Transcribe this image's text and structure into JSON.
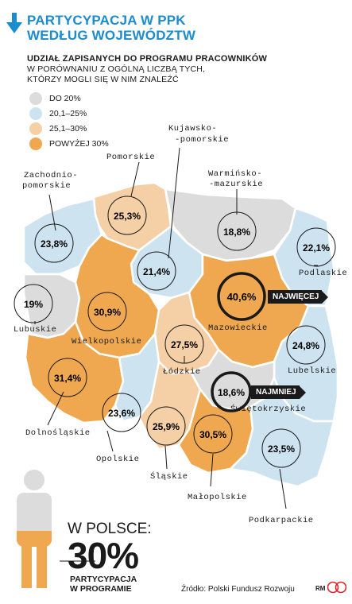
{
  "title": {
    "line1": "PARTYCYPACJA W PPK",
    "line2": "WEDŁUG WOJEWÓDZTW"
  },
  "subtitle": {
    "line1": "UDZIAŁ ZAPISANYCH DO PROGRAMU PRACOWNIKÓW",
    "line2": "W PORÓWNANIU Z OGÓLNĄ LICZBĄ TYCH,",
    "line3": "KTÓRZY MOGLI SIĘ W NIM ZNALEŹĆ"
  },
  "legend": [
    {
      "label": "DO 20%",
      "color": "#dcdcdc"
    },
    {
      "label": "20,1–25%",
      "color": "#cde3f0"
    },
    {
      "label": "25,1–30%",
      "color": "#f5cfa6"
    },
    {
      "label": "POWYŻEJ 30%",
      "color": "#f0a850"
    }
  ],
  "regions": {
    "zachodniopomorskie": {
      "name_l1": "Zachodnio-",
      "name_l2": "pomorskie",
      "value": "23,8%",
      "color": "#cde3f0"
    },
    "pomorskie": {
      "name": "Pomorskie",
      "value": "25,3%",
      "color": "#f5cfa6"
    },
    "kujawsko": {
      "name_l1": "Kujawsko-",
      "name_l2": "-pomorskie",
      "value": "21,4%",
      "color": "#cde3f0"
    },
    "warminsko": {
      "name_l1": "Warmińsko-",
      "name_l2": "-mazurskie",
      "value": "18,8%",
      "color": "#dcdcdc"
    },
    "podlaskie": {
      "name": "Podlaskie",
      "value": "22,1%",
      "color": "#cde3f0"
    },
    "lubuskie": {
      "name": "Lubuskie",
      "value": "19%",
      "color": "#dcdcdc"
    },
    "wielkopolskie": {
      "name": "Wielkopolskie",
      "value": "30,9%",
      "color": "#f0a850"
    },
    "mazowieckie": {
      "name": "Mazowieckie",
      "value": "40,6%",
      "color": "#f0a850"
    },
    "lodzkie": {
      "name": "Łódzkie",
      "value": "27,5%",
      "color": "#f5cfa6"
    },
    "lubelskie": {
      "name": "Lubelskie",
      "value": "24,8%",
      "color": "#cde3f0"
    },
    "dolnoslaskie": {
      "name": "Dolnośląskie",
      "value": "31,4%",
      "color": "#f0a850"
    },
    "opolskie": {
      "name": "Opolskie",
      "value": "23,6%",
      "color": "#cde3f0"
    },
    "slaskie": {
      "name": "Śląskie",
      "value": "25,9%",
      "color": "#f5cfa6"
    },
    "swietokrzyskie": {
      "name": "Świętokrzyskie",
      "value": "18,6%",
      "color": "#dcdcdc"
    },
    "malopolskie": {
      "name": "Małopolskie",
      "value": "30,5%",
      "color": "#f0a850"
    },
    "podkarpackie": {
      "name": "Podkarpackie",
      "value": "23,5%",
      "color": "#cde3f0"
    }
  },
  "badges": {
    "highest": "NAJWIĘCEJ",
    "lowest": "NAJMNIEJ"
  },
  "summary": {
    "line1": "W POLSCE:",
    "value": "30%",
    "caption_l1": "PARTYCYPACJA",
    "caption_l2": "W PROGRAMIE",
    "fill_fraction": 0.3,
    "accent": "#f0a850"
  },
  "source": "Źródło: Polski Fundusz Rozwoju",
  "credit": "RM",
  "accent_color": "#1b8ccf"
}
